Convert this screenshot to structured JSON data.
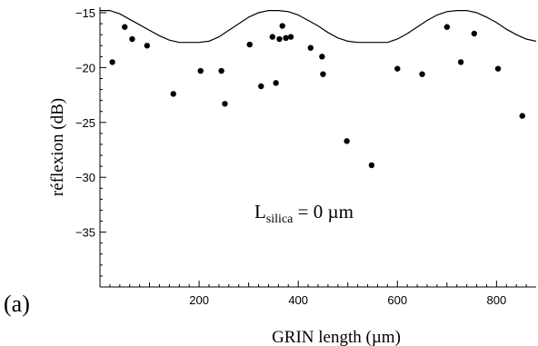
{
  "panel_label": "(a)",
  "chart_data": {
    "type": "scatter",
    "xlabel": "GRIN length (µm)",
    "ylabel": "réflexion (dB)",
    "annotation": {
      "prefix": "L",
      "subscript": "silica",
      "suffix": " = 0 µm"
    },
    "xlim": [
      0,
      880
    ],
    "ylim": [
      -40,
      -14.5
    ],
    "x_ticks": [
      200,
      400,
      600,
      800
    ],
    "x_tick_labels": [
      "200",
      "400",
      "600",
      "800"
    ],
    "x_minor_step": 20,
    "y_ticks": [
      -15,
      -20,
      -25,
      -30,
      -35
    ],
    "y_tick_labels": [
      "−15",
      "−20",
      "−25",
      "−30",
      "−35"
    ],
    "y_minor_step": 1,
    "grid": false,
    "series": [
      {
        "kind": "line",
        "x": [
          0,
          20,
          40,
          60,
          80,
          100,
          120,
          140,
          160,
          180,
          200,
          220,
          240,
          260,
          280,
          300,
          320,
          340,
          360,
          380,
          400,
          420,
          440,
          460,
          480,
          500,
          520,
          540,
          560,
          580,
          600,
          620,
          640,
          660,
          680,
          700,
          720,
          740,
          760,
          780,
          800,
          820,
          840,
          860,
          880
        ],
        "y": [
          -14.8,
          -14.8,
          -15.1,
          -15.6,
          -16.1,
          -16.6,
          -17.1,
          -17.5,
          -17.7,
          -17.7,
          -17.7,
          -17.6,
          -17.2,
          -16.6,
          -16.0,
          -15.4,
          -15.0,
          -14.8,
          -14.8,
          -14.9,
          -15.2,
          -15.7,
          -16.2,
          -16.8,
          -17.3,
          -17.6,
          -17.7,
          -17.7,
          -17.7,
          -17.7,
          -17.4,
          -16.9,
          -16.3,
          -15.7,
          -15.2,
          -14.9,
          -14.8,
          -14.8,
          -15.0,
          -15.4,
          -15.9,
          -16.5,
          -17.0,
          -17.4,
          -17.6
        ]
      },
      {
        "kind": "points",
        "x": [
          25,
          50,
          65,
          95,
          148,
          203,
          245,
          252,
          302,
          325,
          348,
          355,
          362,
          368,
          375,
          385,
          425,
          448,
          450,
          498,
          548,
          600,
          650,
          700,
          728,
          755,
          803,
          852
        ],
        "y": [
          -19.5,
          -16.3,
          -17.4,
          -18.0,
          -22.4,
          -20.3,
          -20.3,
          -23.3,
          -17.9,
          -21.7,
          -17.2,
          -21.4,
          -17.4,
          -16.2,
          -17.3,
          -17.2,
          -18.2,
          -19.0,
          -20.6,
          -26.7,
          -28.9,
          -20.1,
          -20.6,
          -16.3,
          -19.5,
          -16.9,
          -20.1,
          -24.4
        ]
      }
    ]
  }
}
